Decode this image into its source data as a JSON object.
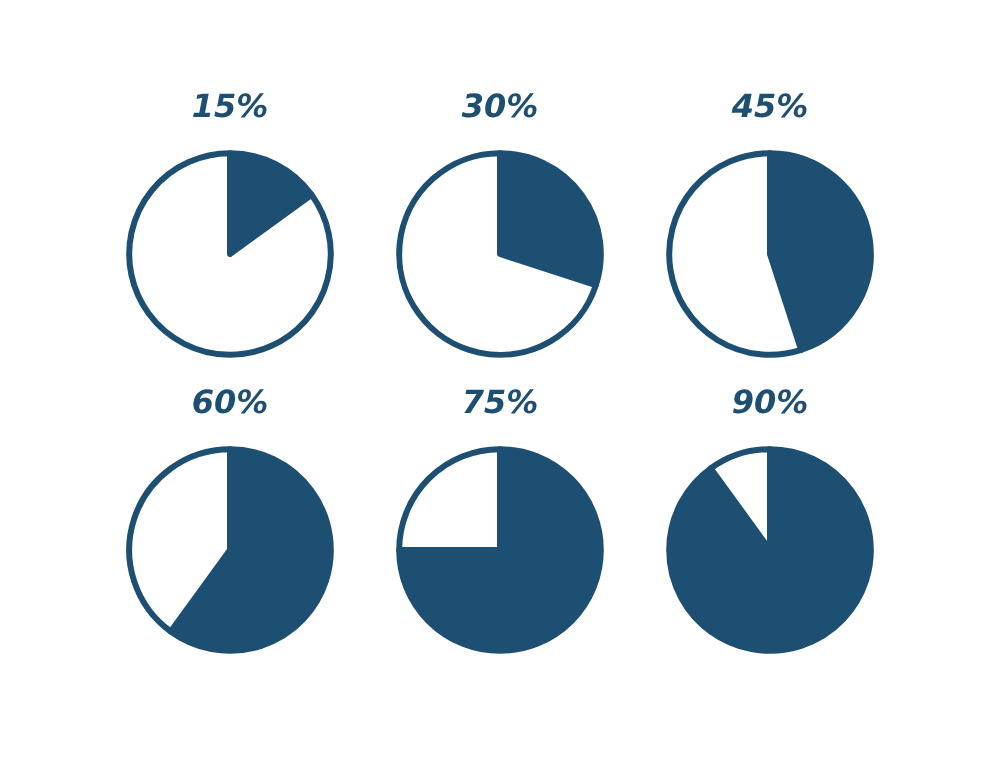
{
  "chart_data": [
    {
      "type": "pie",
      "title": "15%",
      "categories": [
        null,
        null
      ],
      "values": [
        15,
        85
      ],
      "colors": [
        "#1d4f73",
        "#ffffff"
      ]
    },
    {
      "type": "pie",
      "title": "30%",
      "categories": [
        null,
        null
      ],
      "values": [
        30,
        70
      ],
      "colors": [
        "#1d4f73",
        "#ffffff"
      ]
    },
    {
      "type": "pie",
      "title": "45%",
      "categories": [
        null,
        null
      ],
      "values": [
        45,
        55
      ],
      "colors": [
        "#1d4f73",
        "#ffffff"
      ]
    },
    {
      "type": "pie",
      "title": "60%",
      "categories": [
        null,
        null
      ],
      "values": [
        60,
        40
      ],
      "colors": [
        "#1d4f73",
        "#ffffff"
      ]
    },
    {
      "type": "pie",
      "title": "75%",
      "categories": [
        null,
        null
      ],
      "values": [
        75,
        25
      ],
      "colors": [
        "#1d4f73",
        "#ffffff"
      ]
    },
    {
      "type": "pie",
      "title": "90%",
      "categories": [
        null,
        null
      ],
      "values": [
        90,
        10
      ],
      "colors": [
        "#1d4f73",
        "#ffffff"
      ]
    }
  ]
}
